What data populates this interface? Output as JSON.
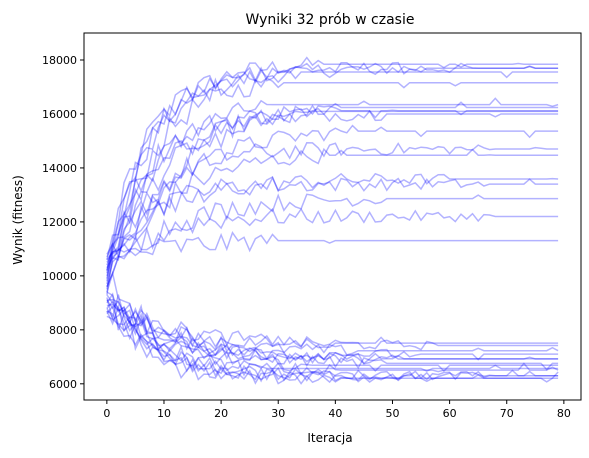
{
  "chart_data": {
    "type": "line",
    "title": "Wyniki 32 prób w czasie",
    "xlabel": "Iteracja",
    "ylabel": "Wynik (fitness)",
    "xlim": [
      -4,
      83
    ],
    "ylim": [
      5400,
      19000
    ],
    "x_ticks": [
      0,
      10,
      20,
      30,
      40,
      50,
      60,
      70,
      80
    ],
    "y_ticks": [
      6000,
      8000,
      10000,
      12000,
      14000,
      16000,
      18000
    ],
    "grid": false,
    "legend": "none",
    "series_color": "#0000ff",
    "series_opacity": 0.3,
    "n_iterations": 80,
    "series": [
      {
        "start": 10200,
        "end": 17900
      },
      {
        "start": 10600,
        "end": 17700
      },
      {
        "start": 9800,
        "end": 17700
      },
      {
        "start": 10400,
        "end": 17600
      },
      {
        "start": 9300,
        "end": 17300
      },
      {
        "start": 10800,
        "end": 16700
      },
      {
        "start": 9600,
        "end": 16500
      },
      {
        "start": 10100,
        "end": 16300
      },
      {
        "start": 10500,
        "end": 16200
      },
      {
        "start": 9900,
        "end": 16000
      },
      {
        "start": 10300,
        "end": 15500
      },
      {
        "start": 9500,
        "end": 14700
      },
      {
        "start": 10000,
        "end": 14600
      },
      {
        "start": 10700,
        "end": 13600
      },
      {
        "start": 9700,
        "end": 13400
      },
      {
        "start": 10200,
        "end": 12900
      },
      {
        "start": 9400,
        "end": 12200
      },
      {
        "start": 10600,
        "end": 11400
      },
      {
        "start": 9200,
        "end": 7500
      },
      {
        "start": 8900,
        "end": 7400
      },
      {
        "start": 9600,
        "end": 7200
      },
      {
        "start": 8700,
        "end": 7100
      },
      {
        "start": 9100,
        "end": 6900
      },
      {
        "start": 8800,
        "end": 6900
      },
      {
        "start": 9300,
        "end": 6700
      },
      {
        "start": 8600,
        "end": 6600
      },
      {
        "start": 9000,
        "end": 6500
      },
      {
        "start": 8500,
        "end": 6400
      },
      {
        "start": 9400,
        "end": 6300
      },
      {
        "start": 8800,
        "end": 6300
      },
      {
        "start": 9100,
        "end": 6200
      },
      {
        "start": 8700,
        "end": 6200
      }
    ]
  }
}
